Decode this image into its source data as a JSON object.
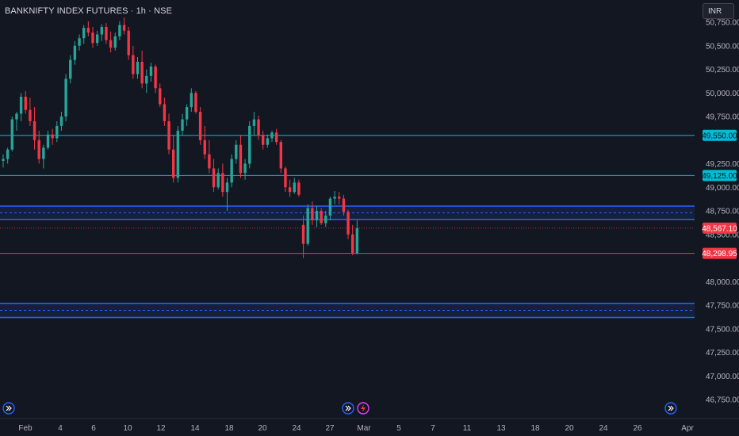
{
  "header": {
    "title": "BANKNIFTY INDEX FUTURES · 1h · NSE",
    "currency_button": "INR"
  },
  "colors": {
    "background": "#131722",
    "up": "#26a69a",
    "down": "#f23645",
    "cyan_line": "#00bcd4",
    "zone_blue": "#2962ff",
    "price_red": "#f23645"
  },
  "chart_data": {
    "type": "candlestick",
    "y_axis": {
      "range": [
        46600,
        50830
      ],
      "ticks": [
        "50,750.00",
        "50,500.00",
        "50,250.00",
        "50,000.00",
        "49,750.00",
        "49,250.00",
        "49,000.00",
        "48,750.00",
        "48,500.00",
        "48,000.00",
        "47,750.00",
        "47,500.00",
        "47,250.00",
        "47,000.00",
        "46,750.00"
      ],
      "tick_values": [
        50750,
        50500,
        50250,
        50000,
        49750,
        49250,
        49000,
        48750,
        48500,
        48000,
        47750,
        47500,
        47250,
        47000,
        46750
      ]
    },
    "x_axis": {
      "labels": [
        "Feb",
        "4",
        "6",
        "10",
        "12",
        "14",
        "18",
        "20",
        "24",
        "27",
        "Mar",
        "5",
        "7",
        "11",
        "13",
        "18",
        "20",
        "24",
        "26",
        "Apr"
      ]
    },
    "horizontal_lines": [
      {
        "name": "resistance",
        "value": 49550,
        "label": "49,550.00",
        "color": "#00bcd4"
      },
      {
        "name": "support",
        "value": 49125,
        "label": "49,125.00",
        "color": "#00bcd4"
      },
      {
        "name": "last-price",
        "value": 48567.1,
        "label": "48,567.10",
        "color": "#f23645",
        "style": "dotted"
      },
      {
        "name": "low-level",
        "value": 48298.95,
        "label": "48,298.95",
        "color": "#f23645"
      }
    ],
    "zones": [
      {
        "name": "upper-zone",
        "top": 48800,
        "bottom": 48660,
        "color": "#2962ff"
      },
      {
        "name": "lower-zone",
        "top": 47770,
        "bottom": 47620,
        "color": "#2962ff"
      }
    ],
    "candles_ohlc": [
      [
        49280,
        49350,
        49210,
        49300
      ],
      [
        49300,
        49420,
        49250,
        49400
      ],
      [
        49400,
        49750,
        49380,
        49720
      ],
      [
        49720,
        49800,
        49600,
        49780
      ],
      [
        49780,
        50000,
        49700,
        49960
      ],
      [
        49960,
        50020,
        49780,
        49820
      ],
      [
        49820,
        49950,
        49650,
        49700
      ],
      [
        49700,
        49850,
        49400,
        49500
      ],
      [
        49500,
        49600,
        49250,
        49300
      ],
      [
        49300,
        49450,
        49200,
        49420
      ],
      [
        49420,
        49600,
        49400,
        49560
      ],
      [
        49560,
        49620,
        49450,
        49520
      ],
      [
        49520,
        49700,
        49480,
        49650
      ],
      [
        49650,
        49800,
        49600,
        49750
      ],
      [
        49750,
        50200,
        49700,
        50150
      ],
      [
        50150,
        50400,
        50100,
        50350
      ],
      [
        50350,
        50550,
        50300,
        50500
      ],
      [
        50500,
        50620,
        50450,
        50580
      ],
      [
        50580,
        50720,
        50520,
        50690
      ],
      [
        50690,
        50760,
        50600,
        50640
      ],
      [
        50640,
        50700,
        50480,
        50530
      ],
      [
        50530,
        50660,
        50500,
        50620
      ],
      [
        50620,
        50730,
        50550,
        50700
      ],
      [
        50700,
        50740,
        50520,
        50560
      ],
      [
        50560,
        50650,
        50430,
        50480
      ],
      [
        50480,
        50640,
        50450,
        50600
      ],
      [
        50600,
        50760,
        50560,
        50720
      ],
      [
        50720,
        50800,
        50620,
        50660
      ],
      [
        50660,
        50700,
        50350,
        50400
      ],
      [
        50400,
        50500,
        50150,
        50200
      ],
      [
        50200,
        50380,
        50150,
        50330
      ],
      [
        50330,
        50450,
        50050,
        50100
      ],
      [
        50100,
        50250,
        50000,
        50180
      ],
      [
        50180,
        50320,
        50120,
        50280
      ],
      [
        50280,
        50300,
        50000,
        50050
      ],
      [
        50050,
        50100,
        49850,
        49880
      ],
      [
        49880,
        49950,
        49650,
        49700
      ],
      [
        49700,
        49780,
        49350,
        49400
      ],
      [
        49400,
        49550,
        49050,
        49100
      ],
      [
        49100,
        49650,
        49050,
        49600
      ],
      [
        49600,
        49780,
        49550,
        49720
      ],
      [
        49720,
        49880,
        49650,
        49850
      ],
      [
        49850,
        50050,
        49800,
        50000
      ],
      [
        50000,
        50020,
        49780,
        49800
      ],
      [
        49800,
        49850,
        49450,
        49500
      ],
      [
        49500,
        49650,
        49300,
        49350
      ],
      [
        49350,
        49500,
        49150,
        49200
      ],
      [
        49200,
        49300,
        48950,
        49000
      ],
      [
        49000,
        49200,
        48980,
        49150
      ],
      [
        49150,
        49250,
        48900,
        48950
      ],
      [
        48950,
        49100,
        48750,
        49050
      ],
      [
        49050,
        49350,
        49000,
        49300
      ],
      [
        49300,
        49500,
        49250,
        49450
      ],
      [
        49450,
        49550,
        49100,
        49150
      ],
      [
        49150,
        49300,
        49080,
        49250
      ],
      [
        49250,
        49700,
        49200,
        49650
      ],
      [
        49650,
        49800,
        49550,
        49720
      ],
      [
        49720,
        49760,
        49500,
        49550
      ],
      [
        49550,
        49600,
        49400,
        49450
      ],
      [
        49450,
        49560,
        49420,
        49520
      ],
      [
        49520,
        49600,
        49480,
        49580
      ],
      [
        49580,
        49620,
        49450,
        49480
      ],
      [
        49480,
        49500,
        49150,
        49200
      ],
      [
        49200,
        49220,
        48950,
        49000
      ],
      [
        49000,
        49080,
        48900,
        48950
      ],
      [
        48950,
        49100,
        48930,
        49050
      ],
      [
        49050,
        49080,
        48900,
        48920
      ],
      [
        48600,
        48700,
        48250,
        48400
      ],
      [
        48400,
        48820,
        48380,
        48780
      ],
      [
        48780,
        48850,
        48600,
        48650
      ],
      [
        48650,
        48800,
        48580,
        48750
      ],
      [
        48750,
        48780,
        48600,
        48620
      ],
      [
        48620,
        48750,
        48580,
        48700
      ],
      [
        48700,
        48900,
        48650,
        48880
      ],
      [
        48880,
        48960,
        48820,
        48900
      ],
      [
        48900,
        48950,
        48820,
        48880
      ],
      [
        48880,
        48920,
        48700,
        48740
      ],
      [
        48740,
        48760,
        48450,
        48500
      ],
      [
        48500,
        48600,
        48280,
        48300
      ],
      [
        48300,
        48650,
        48290,
        48567
      ]
    ]
  }
}
